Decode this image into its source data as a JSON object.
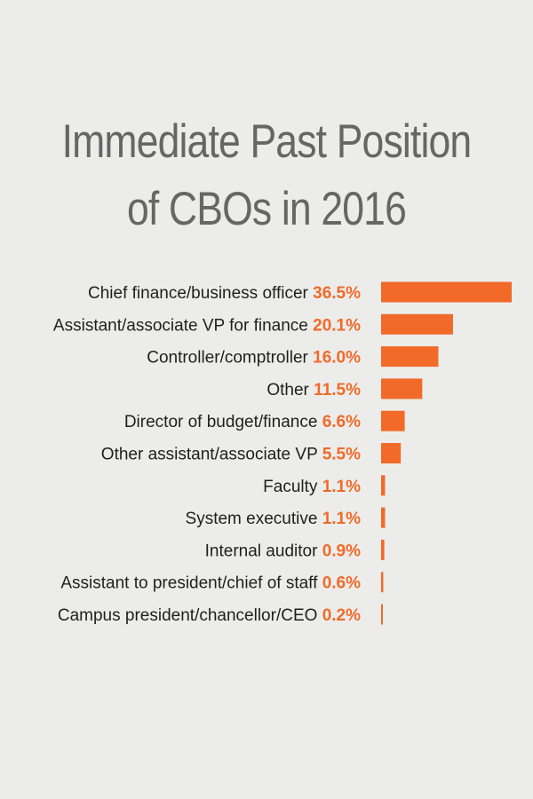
{
  "chart_data": {
    "type": "bar",
    "orientation": "horizontal",
    "title_lines": [
      "Immediate Past Position",
      "of CBOs in 2016"
    ],
    "categories": [
      "Chief finance/business officer",
      "Assistant/associate VP for finance",
      "Controller/comptroller",
      "Other",
      "Director of budget/finance",
      "Other assistant/associate VP",
      "Faculty",
      "System executive",
      "Internal auditor",
      "Assistant to president/chief of staff",
      "Campus president/chancellor/CEO"
    ],
    "values": [
      36.5,
      20.1,
      16.0,
      11.5,
      6.6,
      5.5,
      1.1,
      1.1,
      0.9,
      0.6,
      0.2
    ],
    "value_labels": [
      "36.5%",
      "20.1%",
      "16.0%",
      "11.5%",
      "6.6%",
      "5.5%",
      "1.1%",
      "1.1%",
      "0.9%",
      "0.6%",
      "0.2%"
    ],
    "unit": "%",
    "bar_color": "#f26a28",
    "value_label_color": "#f26a28",
    "xlim": [
      0,
      36.5
    ],
    "grid": false,
    "legend": "none"
  },
  "colors": {
    "background": "#ececeb",
    "title": "#666666",
    "label": "#1f1f1f"
  }
}
